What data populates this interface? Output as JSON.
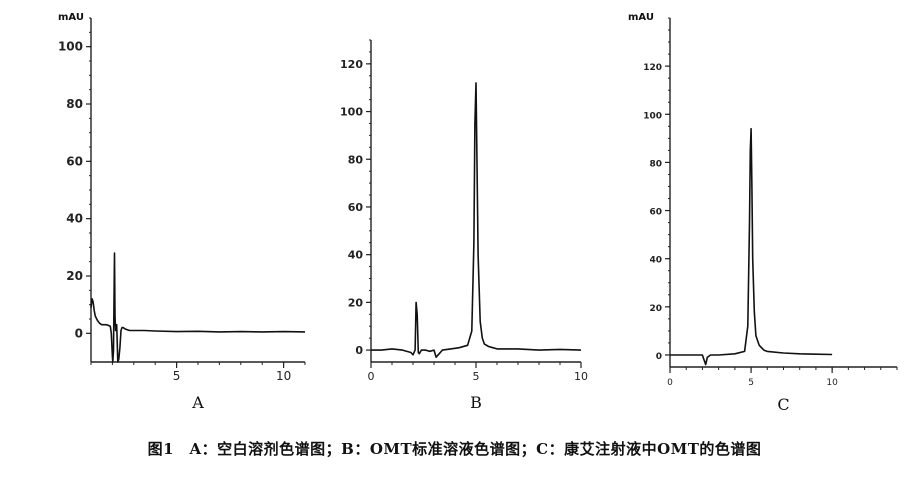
{
  "caption": "图1　A：空白溶剂色谱图；B：OMT标准溶液色谱图；C：康艾注射液中OMT的色谱图",
  "chart_data": [
    {
      "type": "line",
      "panel_label": "A",
      "ylabel": "mAU",
      "xlim": [
        1,
        11
      ],
      "ylim": [
        -10,
        110
      ],
      "xticks": [
        5,
        10
      ],
      "yticks": [
        0,
        20,
        40,
        60,
        80,
        100
      ],
      "grid": false,
      "x": [
        1.0,
        1.05,
        1.1,
        1.15,
        1.2,
        1.3,
        1.4,
        1.5,
        1.6,
        1.7,
        1.8,
        1.9,
        1.95,
        2.0,
        2.02,
        2.05,
        2.07,
        2.1,
        2.12,
        2.15,
        2.2,
        2.25,
        2.3,
        2.35,
        2.4,
        2.45,
        2.5,
        2.6,
        2.8,
        3.0,
        3.5,
        4,
        5,
        6,
        7,
        8,
        9,
        10,
        11
      ],
      "y": [
        9,
        12,
        11,
        8,
        6,
        4.5,
        3.5,
        3,
        3,
        3,
        2.8,
        2.5,
        0,
        -8,
        -10,
        -6,
        8,
        28,
        6,
        1,
        3,
        -10,
        -9,
        -5,
        1,
        2,
        2,
        1.5,
        1,
        1,
        1,
        0.8,
        0.6,
        0.7,
        0.5,
        0.6,
        0.5,
        0.6,
        0.5
      ]
    },
    {
      "type": "line",
      "panel_label": "B",
      "xlim": [
        0,
        10
      ],
      "ylim": [
        -5,
        130
      ],
      "xticks": [
        0,
        5,
        10
      ],
      "yticks": [
        0,
        20,
        40,
        60,
        80,
        100,
        120
      ],
      "grid": false,
      "x": [
        0,
        0.5,
        1,
        1.5,
        1.9,
        2.0,
        2.1,
        2.15,
        2.2,
        2.25,
        2.3,
        2.4,
        2.6,
        2.8,
        3.0,
        3.1,
        3.2,
        3.4,
        3.8,
        4.2,
        4.6,
        4.8,
        4.9,
        4.95,
        5.0,
        5.05,
        5.1,
        5.2,
        5.3,
        5.4,
        5.6,
        5.8,
        6,
        7,
        8,
        9,
        10
      ],
      "y": [
        0,
        0,
        0.5,
        0,
        -1,
        -2,
        0,
        20,
        15,
        -1,
        -1.5,
        0,
        0,
        -0.5,
        0,
        -3,
        -2,
        0,
        0.5,
        1,
        2,
        8,
        45,
        95,
        112,
        75,
        40,
        12,
        5,
        2.5,
        1.5,
        1,
        0.5,
        0.5,
        0,
        0.3,
        0
      ]
    },
    {
      "type": "line",
      "panel_label": "C",
      "xlim": [
        0,
        14
      ],
      "ylim": [
        -5,
        140
      ],
      "xticks": [
        0,
        5,
        10
      ],
      "yticks": [
        0,
        20,
        40,
        60,
        80,
        100,
        120
      ],
      "ylabel": "mAU",
      "grid": false,
      "x": [
        0,
        1,
        2,
        2.1,
        2.2,
        2.3,
        2.5,
        3,
        4,
        4.6,
        4.8,
        4.9,
        4.95,
        5.0,
        5.05,
        5.1,
        5.2,
        5.3,
        5.5,
        5.8,
        6,
        7,
        8,
        9,
        10
      ],
      "y": [
        0,
        0,
        0,
        -2,
        -4,
        -1,
        0,
        0,
        0.5,
        1.5,
        12,
        55,
        85,
        94,
        70,
        40,
        18,
        8,
        4,
        2,
        1.5,
        0.8,
        0.5,
        0.3,
        0.2
      ]
    }
  ]
}
